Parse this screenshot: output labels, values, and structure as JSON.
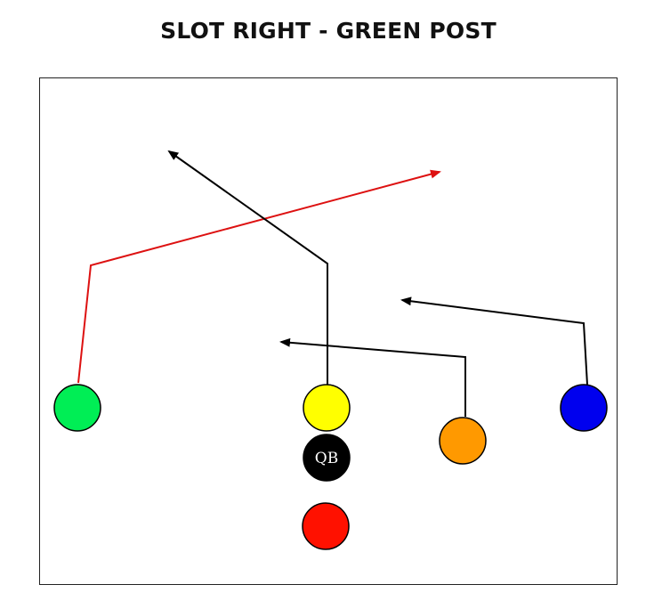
{
  "title": "SLOT RIGHT - GREEN POST",
  "players": [
    {
      "id": "green",
      "fill": "#00ee55",
      "label": ""
    },
    {
      "id": "yellow",
      "fill": "#ffff00",
      "label": ""
    },
    {
      "id": "qb",
      "fill": "#000000",
      "label": "QB",
      "label_color": "#ffffff"
    },
    {
      "id": "orange",
      "fill": "#ff9900",
      "label": ""
    },
    {
      "id": "blue",
      "fill": "#0000ee",
      "label": ""
    },
    {
      "id": "red",
      "fill": "#ff1100",
      "label": ""
    }
  ],
  "routes": [
    {
      "player": "green",
      "color": "#dd1111",
      "shape": "post"
    },
    {
      "player": "yellow",
      "color": "#000000",
      "shape": "corner"
    },
    {
      "player": "orange",
      "color": "#000000",
      "shape": "in"
    },
    {
      "player": "blue",
      "color": "#000000",
      "shape": "in"
    }
  ]
}
